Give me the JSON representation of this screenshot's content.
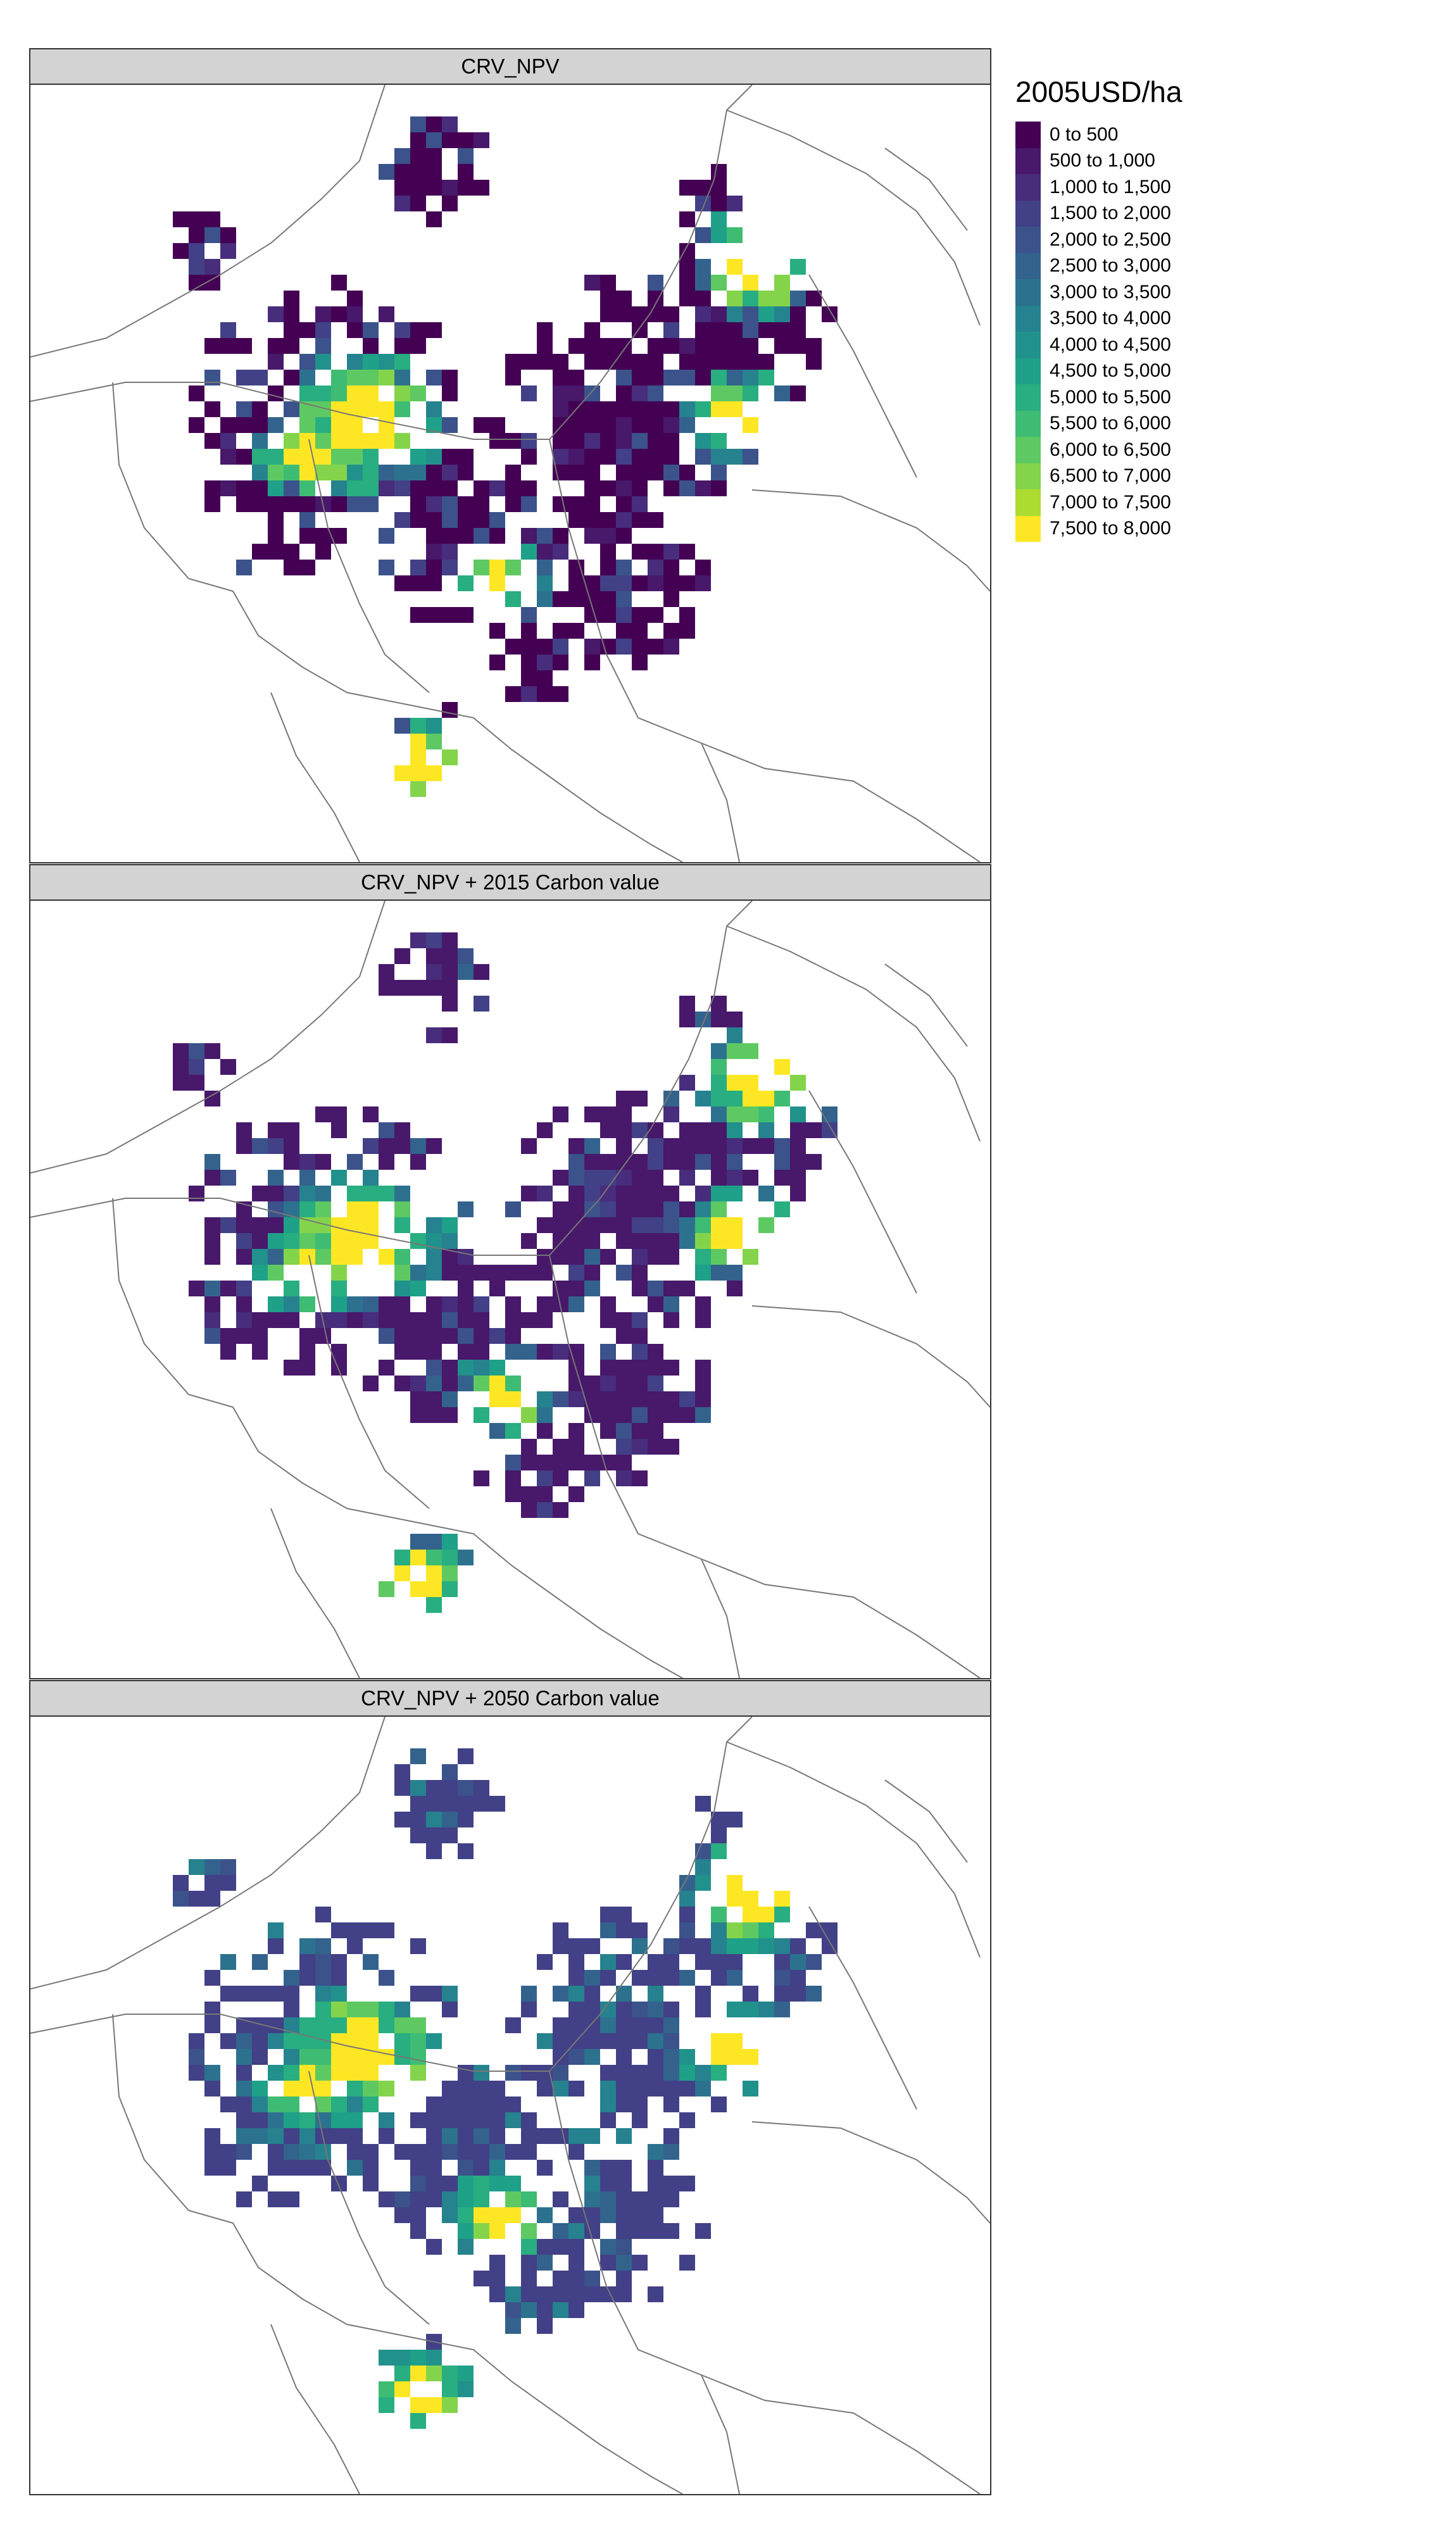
{
  "panels": [
    {
      "title": "CRV_NPV",
      "shift": 0
    },
    {
      "title": "CRV_NPV + 2015 Carbon value",
      "shift": 1
    },
    {
      "title": "CRV_NPV + 2050 Carbon value",
      "shift": 3
    }
  ],
  "legend": {
    "title": "2005USD/ha",
    "items": [
      {
        "label": "0 to 500",
        "color": "#440154"
      },
      {
        "label": "500 to 1,000",
        "color": "#48186a"
      },
      {
        "label": "1,000 to 1,500",
        "color": "#472d7b"
      },
      {
        "label": "1,500 to 2,000",
        "color": "#424086"
      },
      {
        "label": "2,000 to 2,500",
        "color": "#3b528b"
      },
      {
        "label": "2,500 to 3,000",
        "color": "#33638d"
      },
      {
        "label": "3,000 to 3,500",
        "color": "#2c728e"
      },
      {
        "label": "3,500 to 4,000",
        "color": "#26828e"
      },
      {
        "label": "4,000 to 4,500",
        "color": "#21918c"
      },
      {
        "label": "4,500 to 5,000",
        "color": "#1fa088"
      },
      {
        "label": "5,000 to 5,500",
        "color": "#28ae80"
      },
      {
        "label": "5,500 to 6,000",
        "color": "#3fbc73"
      },
      {
        "label": "6,000 to 6,500",
        "color": "#5ec962"
      },
      {
        "label": "6,500 to 7,000",
        "color": "#84d44b"
      },
      {
        "label": "7,000 to 7,500",
        "color": "#addc30"
      },
      {
        "label": "7,500 to 8,000",
        "color": "#fde725"
      }
    ]
  }
}
